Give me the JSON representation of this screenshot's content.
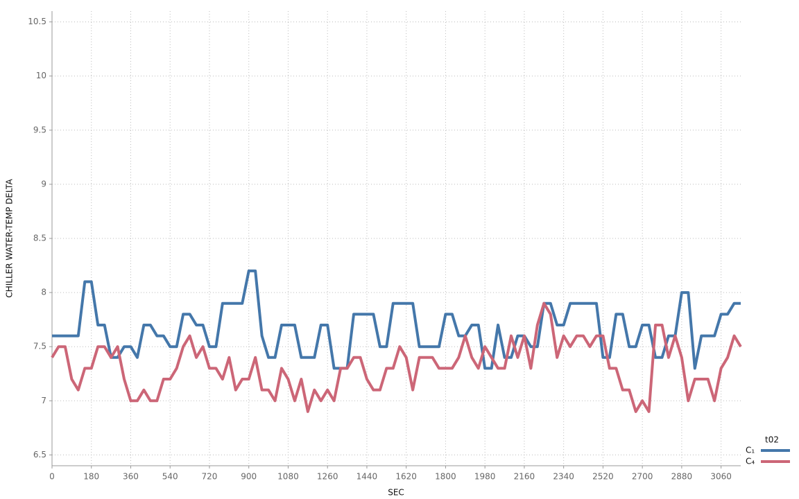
{
  "chart_data": {
    "type": "line",
    "xlabel": "SEC",
    "ylabel": "CHILLER WATER-TEMP DELTA",
    "legend_title": "t02",
    "legend": "right",
    "x": [
      0,
      30,
      60,
      90,
      120,
      150,
      180,
      210,
      240,
      270,
      300,
      330,
      360,
      390,
      420,
      450,
      480,
      510,
      540,
      570,
      600,
      630,
      660,
      690,
      720,
      750,
      780,
      810,
      840,
      870,
      900,
      930,
      960,
      990,
      1020,
      1050,
      1080,
      1110,
      1140,
      1170,
      1200,
      1230,
      1260,
      1290,
      1320,
      1350,
      1380,
      1410,
      1440,
      1470,
      1500,
      1530,
      1560,
      1590,
      1620,
      1650,
      1680,
      1710,
      1740,
      1770,
      1800,
      1830,
      1860,
      1890,
      1920,
      1950,
      1980,
      2010,
      2040,
      2070,
      2100,
      2130,
      2160,
      2190,
      2220,
      2250,
      2280,
      2310,
      2340,
      2370,
      2400,
      2430,
      2460,
      2490,
      2520,
      2550,
      2580,
      2610,
      2640,
      2670,
      2700,
      2730,
      2760,
      2790,
      2820,
      2850,
      2880,
      2910,
      2940,
      2970,
      3000,
      3030,
      3060,
      3090,
      3120,
      3150
    ],
    "series": [
      {
        "name": "C₁",
        "color": "#4477aa",
        "values": [
          7.6,
          7.6,
          7.6,
          7.6,
          7.6,
          8.1,
          8.1,
          7.7,
          7.7,
          7.4,
          7.4,
          7.5,
          7.5,
          7.4,
          7.7,
          7.7,
          7.6,
          7.6,
          7.5,
          7.5,
          7.8,
          7.8,
          7.7,
          7.7,
          7.5,
          7.5,
          7.9,
          7.9,
          7.9,
          7.9,
          8.2,
          8.2,
          7.6,
          7.4,
          7.4,
          7.7,
          7.7,
          7.7,
          7.4,
          7.4,
          7.4,
          7.7,
          7.7,
          7.3,
          7.3,
          7.3,
          7.8,
          7.8,
          7.8,
          7.8,
          7.5,
          7.5,
          7.9,
          7.9,
          7.9,
          7.9,
          7.5,
          7.5,
          7.5,
          7.5,
          7.8,
          7.8,
          7.6,
          7.6,
          7.7,
          7.7,
          7.3,
          7.3,
          7.7,
          7.4,
          7.4,
          7.6,
          7.6,
          7.5,
          7.5,
          7.9,
          7.9,
          7.7,
          7.7,
          7.9,
          7.9,
          7.9,
          7.9,
          7.9,
          7.4,
          7.4,
          7.8,
          7.8,
          7.5,
          7.5,
          7.7,
          7.7,
          7.4,
          7.4,
          7.6,
          7.6,
          8.0,
          8.0,
          7.3,
          7.6,
          7.6,
          7.6,
          7.8,
          7.8,
          7.9,
          7.9
        ]
      },
      {
        "name": "C₄",
        "color": "#cc6677",
        "values": [
          7.4,
          7.5,
          7.5,
          7.2,
          7.1,
          7.3,
          7.3,
          7.5,
          7.5,
          7.4,
          7.5,
          7.2,
          7.0,
          7.0,
          7.1,
          7.0,
          7.0,
          7.2,
          7.2,
          7.3,
          7.5,
          7.6,
          7.4,
          7.5,
          7.3,
          7.3,
          7.2,
          7.4,
          7.1,
          7.2,
          7.2,
          7.4,
          7.1,
          7.1,
          7.0,
          7.3,
          7.2,
          7.0,
          7.2,
          6.9,
          7.1,
          7.0,
          7.1,
          7.0,
          7.3,
          7.3,
          7.4,
          7.4,
          7.2,
          7.1,
          7.1,
          7.3,
          7.3,
          7.5,
          7.4,
          7.1,
          7.4,
          7.4,
          7.4,
          7.3,
          7.3,
          7.3,
          7.4,
          7.6,
          7.4,
          7.3,
          7.5,
          7.4,
          7.3,
          7.3,
          7.6,
          7.4,
          7.6,
          7.3,
          7.7,
          7.9,
          7.8,
          7.4,
          7.6,
          7.5,
          7.6,
          7.6,
          7.5,
          7.6,
          7.6,
          7.3,
          7.3,
          7.1,
          7.1,
          6.9,
          7.0,
          6.9,
          7.7,
          7.7,
          7.4,
          7.6,
          7.4,
          7.0,
          7.2,
          7.2,
          7.2,
          7.0,
          7.3,
          7.4,
          7.6,
          7.5
        ]
      }
    ],
    "xlim": [
      0,
      3150
    ],
    "xticks": [
      0,
      180,
      360,
      540,
      720,
      900,
      1080,
      1260,
      1440,
      1620,
      1800,
      1980,
      2160,
      2340,
      2520,
      2700,
      2880,
      3060
    ],
    "ylim": [
      6.4,
      10.6
    ],
    "yticks": [
      6.5,
      7,
      7.5,
      8,
      8.5,
      9,
      9.5,
      10,
      10.5
    ],
    "grid": true
  }
}
